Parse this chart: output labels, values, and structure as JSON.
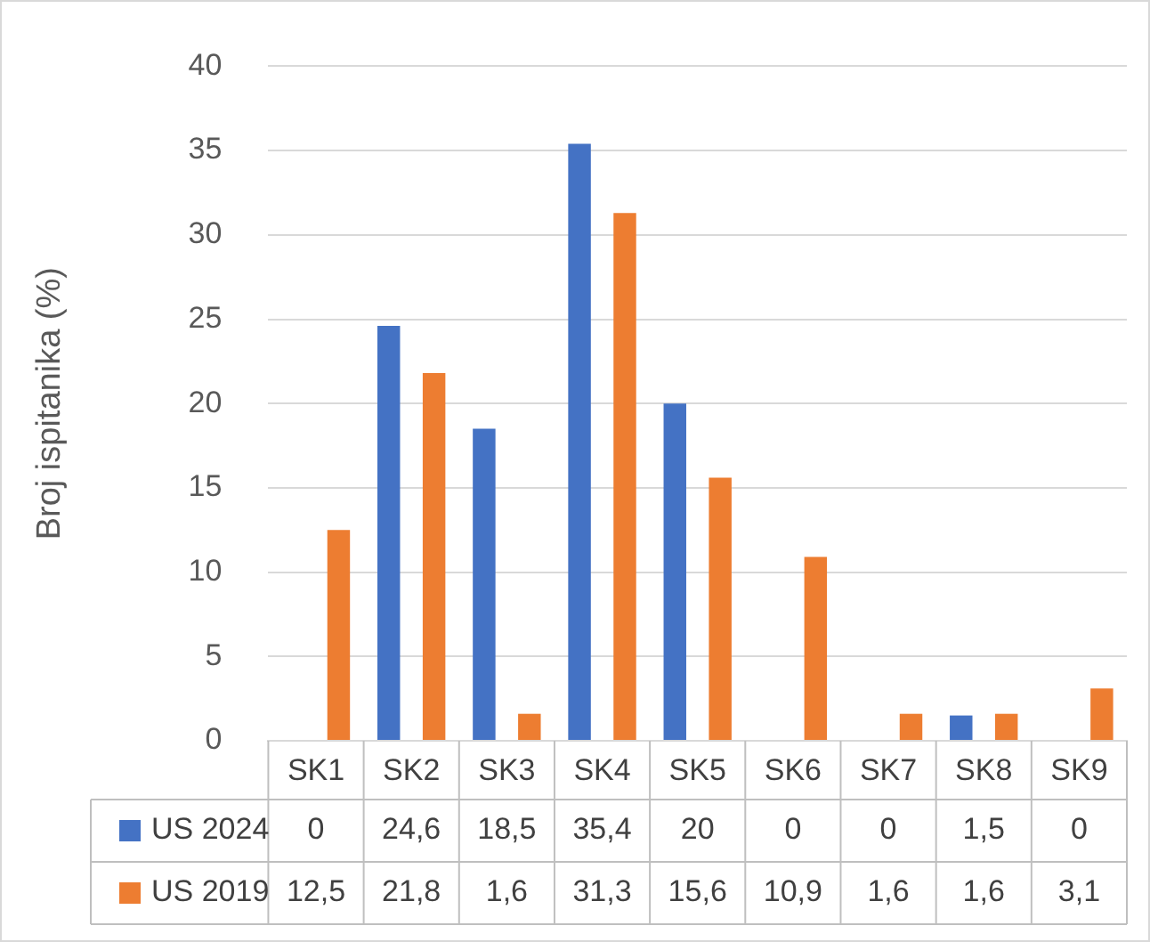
{
  "chart_data": {
    "type": "bar",
    "ylabel": "Broj ispitanika (%)",
    "categories": [
      "SK1",
      "SK2",
      "SK3",
      "SK4",
      "SK5",
      "SK6",
      "SK7",
      "SK8",
      "SK9"
    ],
    "series": [
      {
        "name": "US 2024",
        "color": "#4472c4",
        "values": [
          0,
          24.6,
          18.5,
          35.4,
          20,
          0,
          0,
          1.5,
          0
        ],
        "value_labels": [
          "0",
          "24,6",
          "18,5",
          "35,4",
          "20",
          "0",
          "0",
          "1,5",
          "0"
        ]
      },
      {
        "name": "US 2019",
        "color": "#ed7d31",
        "values": [
          12.5,
          21.8,
          1.6,
          31.3,
          15.6,
          10.9,
          1.6,
          1.6,
          3.1
        ],
        "value_labels": [
          "12,5",
          "21,8",
          "1,6",
          "31,3",
          "15,6",
          "10,9",
          "1,6",
          "1,6",
          "3,1"
        ]
      }
    ],
    "ylim": [
      0,
      40
    ],
    "yticks": [
      0,
      5,
      10,
      15,
      20,
      25,
      30,
      35,
      40
    ],
    "grid": "y",
    "legend": "bottom"
  }
}
